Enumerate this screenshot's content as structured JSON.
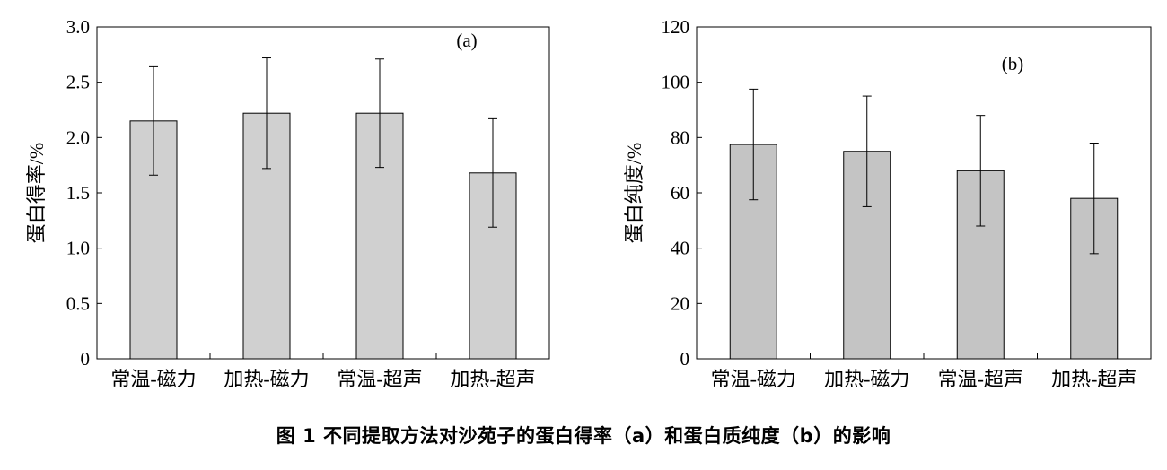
{
  "caption": "图 1 不同提取方法对沙苑子的蛋白得率（a）和蛋白质纯度（b）的影响",
  "chart_data": [
    {
      "type": "bar",
      "panel_label": "(a)",
      "categories": [
        "常温-磁力",
        "加热-磁力",
        "常温-超声",
        "加热-超声"
      ],
      "values": [
        2.15,
        2.22,
        2.22,
        1.68
      ],
      "errors": [
        0.49,
        0.5,
        0.49,
        0.49
      ],
      "xlabel": "",
      "ylabel": "蛋白得率/%",
      "ylim": [
        0,
        3.0
      ],
      "yticks": [
        0,
        0.5,
        1.0,
        1.5,
        2.0,
        2.5,
        3.0
      ],
      "ytick_labels": [
        "0",
        "0.5",
        "1.0",
        "1.5",
        "2.0",
        "2.5",
        "3.0"
      ],
      "bar_color": "#d0d0d0",
      "grid": false
    },
    {
      "type": "bar",
      "panel_label": "(b)",
      "categories": [
        "常温-磁力",
        "加热-磁力",
        "常温-超声",
        "加热-超声"
      ],
      "values": [
        77.5,
        75,
        68,
        58
      ],
      "errors": [
        20,
        20,
        20,
        20
      ],
      "xlabel": "",
      "ylabel": "蛋白纯度/%",
      "ylim": [
        0,
        120
      ],
      "yticks": [
        0,
        20,
        40,
        60,
        80,
        100,
        120
      ],
      "ytick_labels": [
        "0",
        "20",
        "40",
        "60",
        "80",
        "100",
        "120"
      ],
      "bar_color": "#c4c4c4",
      "grid": false
    }
  ]
}
